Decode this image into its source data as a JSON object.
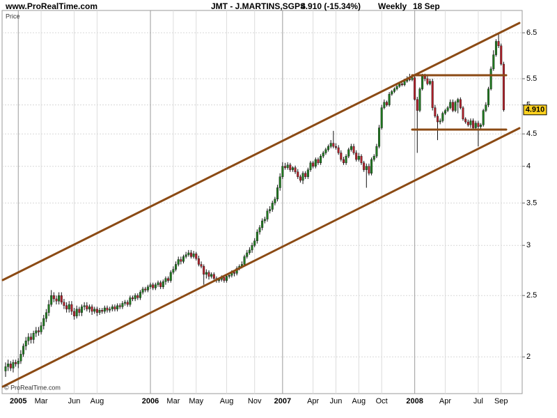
{
  "chart_data": {
    "type": "candlestick",
    "site": "www.ProRealTime.com",
    "title": "JMT - J.MARTINS,SGPS",
    "change_label": "4.910 (-15.34%)",
    "period": "Weekly",
    "date": "18 Sep",
    "y_label": "Price",
    "copyright": "© ProRealTime.com",
    "log_scale": true,
    "grid": true,
    "up_color": "#1f7a1f",
    "down_color": "#b0202a",
    "last_price": {
      "value": 4.91,
      "label": "4.910"
    },
    "ylim": [
      1.75,
      7.05
    ],
    "yticks": [
      2,
      2.5,
      3,
      3.5,
      4,
      4.5,
      5,
      5.5,
      6.5
    ],
    "categories": [
      null,
      null,
      null,
      null,
      null,
      "2005",
      null,
      null,
      null,
      null,
      null,
      null,
      null,
      null,
      "Mar",
      null,
      null,
      null,
      null,
      null,
      null,
      null,
      null,
      null,
      null,
      null,
      null,
      "Jun",
      null,
      null,
      null,
      null,
      null,
      null,
      null,
      null,
      "Aug",
      null,
      null,
      null,
      null,
      null,
      null,
      null,
      null,
      null,
      null,
      null,
      null,
      null,
      null,
      null,
      null,
      null,
      null,
      null,
      null,
      "2006",
      null,
      null,
      null,
      null,
      null,
      null,
      null,
      null,
      "Mar",
      null,
      null,
      null,
      null,
      null,
      null,
      null,
      null,
      "May",
      null,
      null,
      null,
      null,
      null,
      null,
      null,
      null,
      null,
      null,
      null,
      "Aug",
      null,
      null,
      null,
      null,
      null,
      null,
      null,
      null,
      null,
      null,
      "Nov",
      null,
      null,
      null,
      null,
      null,
      null,
      null,
      null,
      null,
      null,
      "2007",
      null,
      null,
      null,
      null,
      null,
      null,
      null,
      null,
      null,
      null,
      null,
      "Apr",
      null,
      null,
      null,
      null,
      null,
      null,
      null,
      null,
      "Jun",
      null,
      null,
      null,
      null,
      null,
      null,
      null,
      null,
      "Aug",
      null,
      null,
      null,
      null,
      null,
      null,
      null,
      null,
      "Oct",
      null,
      null,
      null,
      null,
      null,
      null,
      null,
      null,
      null,
      null,
      null,
      null,
      "2008",
      null,
      null,
      null,
      null,
      null,
      null,
      null,
      null,
      null,
      null,
      null,
      "Apr",
      null,
      null,
      null,
      null,
      null,
      null,
      null,
      null,
      null,
      null,
      null,
      null,
      "Jul",
      null,
      null,
      null,
      null,
      null,
      null,
      null,
      null,
      "Sep",
      null
    ],
    "open": [
      1.9,
      1.93,
      1.95,
      1.92,
      1.96,
      1.95,
      1.97,
      2.02,
      2.08,
      2.12,
      2.15,
      2.13,
      2.18,
      2.2,
      2.19,
      2.24,
      2.3,
      2.35,
      2.42,
      2.5,
      2.47,
      2.45,
      2.5,
      2.44,
      2.41,
      2.38,
      2.42,
      2.36,
      2.32,
      2.38,
      2.35,
      2.4,
      2.41,
      2.38,
      2.4,
      2.36,
      2.38,
      2.35,
      2.37,
      2.36,
      2.39,
      2.37,
      2.38,
      2.4,
      2.38,
      2.41,
      2.4,
      2.43,
      2.44,
      2.42,
      2.48,
      2.47,
      2.5,
      2.48,
      2.53,
      2.56,
      2.55,
      2.58,
      2.6,
      2.57,
      2.6,
      2.62,
      2.58,
      2.63,
      2.66,
      2.64,
      2.72,
      2.75,
      2.8,
      2.85,
      2.83,
      2.88,
      2.9,
      2.92,
      2.88,
      2.91,
      2.86,
      2.8,
      2.78,
      2.7,
      2.72,
      2.68,
      2.7,
      2.66,
      2.64,
      2.65,
      2.67,
      2.64,
      2.68,
      2.69,
      2.72,
      2.71,
      2.76,
      2.78,
      2.8,
      2.88,
      2.92,
      2.95,
      3.0,
      3.05,
      3.15,
      3.2,
      3.28,
      3.3,
      3.4,
      3.42,
      3.5,
      3.55,
      3.7,
      3.85,
      4.0,
      3.98,
      4.02,
      3.95,
      3.98,
      3.92,
      3.85,
      3.8,
      3.9,
      3.85,
      3.95,
      4.05,
      4.0,
      4.1,
      4.05,
      4.15,
      4.2,
      4.25,
      4.3,
      4.35,
      4.3,
      4.28,
      4.2,
      4.1,
      4.05,
      4.15,
      4.25,
      4.3,
      4.2,
      4.1,
      4.15,
      4.05,
      3.95,
      4.0,
      3.9,
      4.1,
      4.15,
      4.3,
      4.6,
      4.95,
      5.05,
      5.0,
      5.2,
      5.25,
      5.3,
      5.35,
      5.4,
      5.38,
      5.45,
      5.5,
      5.48,
      5.52,
      5.1,
      4.9,
      5.3,
      5.55,
      5.5,
      5.4,
      5.45,
      4.95,
      4.8,
      4.7,
      4.72,
      4.85,
      4.9,
      4.95,
      5.05,
      4.9,
      5.05,
      5.1,
      4.95,
      4.75,
      4.7,
      4.65,
      4.72,
      4.6,
      4.68,
      4.62,
      4.65,
      4.9,
      5.0,
      5.3,
      5.7,
      6.0,
      6.3,
      6.2,
      5.8
    ],
    "high": [
      1.96,
      1.98,
      1.97,
      1.98,
      1.98,
      1.99,
      2.05,
      2.1,
      2.15,
      2.18,
      2.18,
      2.2,
      2.23,
      2.23,
      2.27,
      2.33,
      2.38,
      2.46,
      2.55,
      2.53,
      2.5,
      2.53,
      2.53,
      2.47,
      2.44,
      2.45,
      2.45,
      2.39,
      2.41,
      2.4,
      2.42,
      2.44,
      2.44,
      2.42,
      2.42,
      2.4,
      2.4,
      2.39,
      2.39,
      2.41,
      2.41,
      2.4,
      2.42,
      2.42,
      2.43,
      2.43,
      2.45,
      2.46,
      2.46,
      2.5,
      2.5,
      2.52,
      2.52,
      2.55,
      2.58,
      2.58,
      2.6,
      2.62,
      2.62,
      2.62,
      2.64,
      2.64,
      2.65,
      2.68,
      2.68,
      2.74,
      2.78,
      2.83,
      2.88,
      2.88,
      2.9,
      2.93,
      2.95,
      2.95,
      2.94,
      2.93,
      2.89,
      2.83,
      2.8,
      2.75,
      2.74,
      2.72,
      2.72,
      2.68,
      2.67,
      2.69,
      2.69,
      2.7,
      2.71,
      2.74,
      2.74,
      2.78,
      2.8,
      2.83,
      2.9,
      2.95,
      2.98,
      3.03,
      3.08,
      3.18,
      3.23,
      3.31,
      3.33,
      3.43,
      3.46,
      3.53,
      3.58,
      3.74,
      3.9,
      4.06,
      4.05,
      4.06,
      4.05,
      4.0,
      4.01,
      3.96,
      3.88,
      3.93,
      3.93,
      3.98,
      4.08,
      4.08,
      4.13,
      4.13,
      4.18,
      4.23,
      4.28,
      4.33,
      4.4,
      4.55,
      4.35,
      4.32,
      4.24,
      4.14,
      4.18,
      4.28,
      4.34,
      4.34,
      4.24,
      4.2,
      4.18,
      4.08,
      4.04,
      4.04,
      4.13,
      4.18,
      4.34,
      4.65,
      5.0,
      5.1,
      5.08,
      5.24,
      5.28,
      5.33,
      5.38,
      5.43,
      5.44,
      5.5,
      5.55,
      5.6,
      5.55,
      5.56,
      5.15,
      5.33,
      5.6,
      5.6,
      5.55,
      5.5,
      5.5,
      5.0,
      4.84,
      4.76,
      4.88,
      4.93,
      4.98,
      5.1,
      5.1,
      5.08,
      5.13,
      5.14,
      4.98,
      4.78,
      4.74,
      4.76,
      4.76,
      4.72,
      4.72,
      4.68,
      4.93,
      5.05,
      5.34,
      5.75,
      6.1,
      6.35,
      6.5,
      6.25,
      5.85
    ],
    "low": [
      1.86,
      1.9,
      1.9,
      1.89,
      1.93,
      1.92,
      1.95,
      2.0,
      2.05,
      2.09,
      2.1,
      2.1,
      2.15,
      2.16,
      2.17,
      2.21,
      2.27,
      2.32,
      2.4,
      2.44,
      2.42,
      2.42,
      2.42,
      2.38,
      2.35,
      2.35,
      2.33,
      2.29,
      2.3,
      2.32,
      2.32,
      2.37,
      2.36,
      2.35,
      2.33,
      2.34,
      2.32,
      2.33,
      2.34,
      2.34,
      2.35,
      2.35,
      2.36,
      2.36,
      2.36,
      2.38,
      2.38,
      2.41,
      2.4,
      2.4,
      2.45,
      2.45,
      2.46,
      2.46,
      2.51,
      2.53,
      2.53,
      2.56,
      2.55,
      2.55,
      2.58,
      2.56,
      2.56,
      2.6,
      2.62,
      2.62,
      2.7,
      2.73,
      2.78,
      2.8,
      2.81,
      2.86,
      2.88,
      2.86,
      2.86,
      2.84,
      2.78,
      2.76,
      2.6,
      2.66,
      2.65,
      2.66,
      2.64,
      2.62,
      2.62,
      2.63,
      2.62,
      2.62,
      2.66,
      2.67,
      2.68,
      2.69,
      2.74,
      2.76,
      2.78,
      2.86,
      2.9,
      2.92,
      2.98,
      3.02,
      3.12,
      3.17,
      3.25,
      3.27,
      3.37,
      3.39,
      3.47,
      3.52,
      3.66,
      3.82,
      3.95,
      3.95,
      3.92,
      3.92,
      3.89,
      3.82,
      3.77,
      3.75,
      3.82,
      3.82,
      3.92,
      3.97,
      3.97,
      4.02,
      4.02,
      4.12,
      4.17,
      4.22,
      4.27,
      4.27,
      4.25,
      4.17,
      4.07,
      4.02,
      4.02,
      4.12,
      4.22,
      4.17,
      4.07,
      4.07,
      4.02,
      3.92,
      3.7,
      3.87,
      3.87,
      4.07,
      4.12,
      4.27,
      4.57,
      4.92,
      4.97,
      4.97,
      5.17,
      5.22,
      5.27,
      5.32,
      5.35,
      5.35,
      5.42,
      5.45,
      5.45,
      5.08,
      4.2,
      4.87,
      5.27,
      5.45,
      5.37,
      5.37,
      4.9,
      4.77,
      4.4,
      4.66,
      4.69,
      4.82,
      4.87,
      4.92,
      4.87,
      4.87,
      4.85,
      4.92,
      4.72,
      4.67,
      4.62,
      4.6,
      4.57,
      4.56,
      4.3,
      4.58,
      4.62,
      4.87,
      4.96,
      5.27,
      5.66,
      5.96,
      6.15,
      5.77,
      4.88
    ],
    "close": [
      1.93,
      1.95,
      1.92,
      1.96,
      1.95,
      1.97,
      2.02,
      2.08,
      2.12,
      2.15,
      2.13,
      2.18,
      2.2,
      2.19,
      2.24,
      2.3,
      2.35,
      2.42,
      2.5,
      2.47,
      2.45,
      2.5,
      2.44,
      2.41,
      2.38,
      2.42,
      2.36,
      2.32,
      2.38,
      2.35,
      2.4,
      2.41,
      2.38,
      2.4,
      2.36,
      2.38,
      2.35,
      2.37,
      2.36,
      2.39,
      2.37,
      2.38,
      2.4,
      2.38,
      2.41,
      2.4,
      2.43,
      2.44,
      2.42,
      2.48,
      2.47,
      2.5,
      2.48,
      2.53,
      2.56,
      2.55,
      2.58,
      2.6,
      2.57,
      2.6,
      2.62,
      2.58,
      2.63,
      2.66,
      2.64,
      2.72,
      2.75,
      2.8,
      2.85,
      2.83,
      2.88,
      2.9,
      2.92,
      2.88,
      2.91,
      2.86,
      2.8,
      2.78,
      2.7,
      2.72,
      2.68,
      2.7,
      2.66,
      2.64,
      2.65,
      2.67,
      2.64,
      2.68,
      2.69,
      2.72,
      2.71,
      2.76,
      2.78,
      2.8,
      2.88,
      2.92,
      2.95,
      3.0,
      3.05,
      3.15,
      3.2,
      3.28,
      3.3,
      3.4,
      3.42,
      3.5,
      3.55,
      3.7,
      3.85,
      4.0,
      3.98,
      4.02,
      3.95,
      3.98,
      3.92,
      3.85,
      3.8,
      3.9,
      3.85,
      3.95,
      4.05,
      4.0,
      4.1,
      4.05,
      4.15,
      4.2,
      4.25,
      4.3,
      4.35,
      4.3,
      4.28,
      4.2,
      4.1,
      4.05,
      4.15,
      4.25,
      4.3,
      4.2,
      4.1,
      4.15,
      4.05,
      3.95,
      4.0,
      3.9,
      4.1,
      4.15,
      4.3,
      4.6,
      4.95,
      5.05,
      5.0,
      5.2,
      5.25,
      5.3,
      5.35,
      5.4,
      5.38,
      5.45,
      5.5,
      5.48,
      5.52,
      5.1,
      4.9,
      5.3,
      5.55,
      5.5,
      5.4,
      5.45,
      4.95,
      4.8,
      4.7,
      4.72,
      4.85,
      4.9,
      4.95,
      5.05,
      4.9,
      5.05,
      5.1,
      4.95,
      4.75,
      4.7,
      4.65,
      4.72,
      4.6,
      4.68,
      4.62,
      4.65,
      4.9,
      5.0,
      5.3,
      5.7,
      6.0,
      6.3,
      6.2,
      5.8,
      4.91
    ]
  }
}
